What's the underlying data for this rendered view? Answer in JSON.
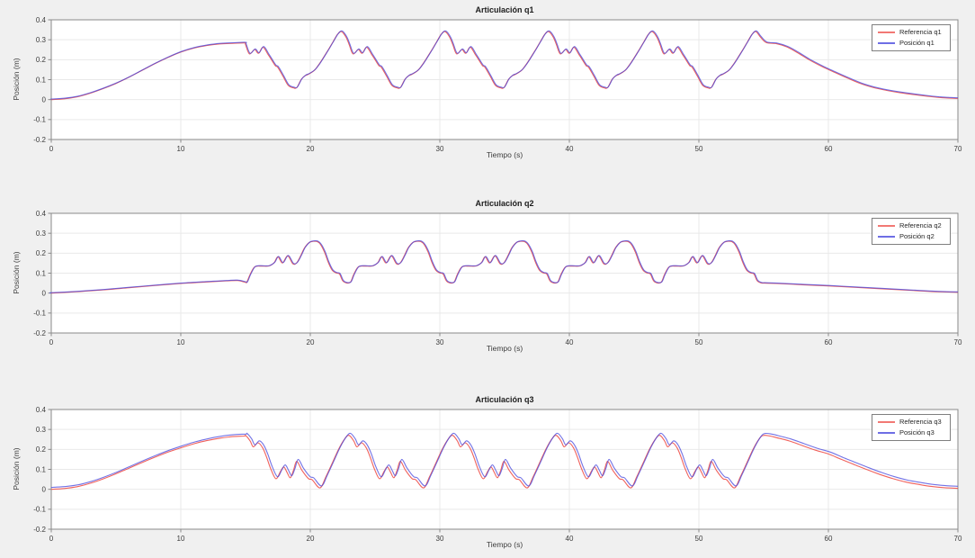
{
  "figure": {
    "background_color": "#f0f0f0",
    "plot_background": "#ffffff",
    "grid_color": "#e9e9e9",
    "axis_color": "#8a8a8a",
    "tick_label_color": "#3c3c3c",
    "title_color": "#1c1c1c",
    "legend_border_color": "#7f7f7f"
  },
  "chart_data": [
    {
      "type": "line",
      "title": "Articulación q1",
      "xlabel": "Tiempo (s)",
      "ylabel": "Posición (m)",
      "xlim": [
        0,
        70
      ],
      "ylim": [
        -0.2,
        0.4
      ],
      "xticks": [
        0,
        10,
        20,
        30,
        40,
        50,
        60,
        70
      ],
      "yticks": [
        -0.2,
        -0.1,
        0,
        0.1,
        0.2,
        0.3,
        0.4
      ],
      "grid": true,
      "legend": {
        "location": "northeast"
      },
      "series": [
        {
          "name": "Referencia q1",
          "color": "#ee4b45",
          "role": "reference",
          "rise": [
            [
              0,
              0
            ],
            [
              1,
              0.004
            ],
            [
              2,
              0.014
            ],
            [
              3,
              0.032
            ],
            [
              4,
              0.055
            ],
            [
              5,
              0.081
            ],
            [
              6,
              0.112
            ],
            [
              7,
              0.146
            ],
            [
              8,
              0.18
            ],
            [
              9,
              0.211
            ],
            [
              10,
              0.238
            ],
            [
              11,
              0.258
            ],
            [
              12,
              0.271
            ],
            [
              13,
              0.279
            ],
            [
              14,
              0.282
            ],
            [
              14.95,
              0.284
            ]
          ],
          "cycle": {
            "period": 8,
            "peaks": [
              14.4,
              22.4,
              30.4,
              38.4,
              46.4,
              54.4
            ],
            "start": 15.0,
            "end": 54.4,
            "keypoints": [
              [
                0,
                0.341
              ],
              [
                0.35,
                0.314
              ],
              [
                0.6,
                0.276
              ],
              [
                0.9,
                0.229
              ],
              [
                1.3,
                0.251
              ],
              [
                1.6,
                0.232
              ],
              [
                1.95,
                0.263
              ],
              [
                2.35,
                0.225
              ],
              [
                2.6,
                0.2
              ],
              [
                2.9,
                0.17
              ],
              [
                3.1,
                0.161
              ],
              [
                3.5,
                0.116
              ],
              [
                3.9,
                0.071
              ],
              [
                4.3,
                0.059
              ],
              [
                4.55,
                0.06
              ],
              [
                4.9,
                0.101
              ],
              [
                5.2,
                0.12
              ],
              [
                5.45,
                0.127
              ],
              [
                5.9,
                0.146
              ],
              [
                6.2,
                0.17
              ],
              [
                6.5,
                0.199
              ],
              [
                7,
                0.251
              ],
              [
                7.35,
                0.289
              ],
              [
                7.7,
                0.327
              ],
              [
                8,
                0.341
              ]
            ]
          },
          "tail": [
            [
              54.75,
              0.314
            ],
            [
              55.2,
              0.286
            ],
            [
              56,
              0.28
            ],
            [
              56.8,
              0.264
            ],
            [
              57.6,
              0.236
            ],
            [
              58.5,
              0.2
            ],
            [
              59.5,
              0.166
            ],
            [
              60.5,
              0.136
            ],
            [
              61.5,
              0.107
            ],
            [
              62.5,
              0.08
            ],
            [
              63.5,
              0.06
            ],
            [
              64.5,
              0.046
            ],
            [
              65.5,
              0.035
            ],
            [
              66.5,
              0.026
            ],
            [
              67.5,
              0.018
            ],
            [
              68.5,
              0.011
            ],
            [
              69.2,
              0.008
            ],
            [
              70,
              0.006
            ]
          ]
        },
        {
          "name": "Posición q1",
          "color": "#4a4ade",
          "role": "measured",
          "derive_from": 0,
          "time_offset": 0.05,
          "value_offset": 0.003
        }
      ]
    },
    {
      "type": "line",
      "title": "Articulación q2",
      "xlabel": "Tiempo (s)",
      "ylabel": "Posición (m)",
      "xlim": [
        0,
        70
      ],
      "ylim": [
        -0.2,
        0.4
      ],
      "xticks": [
        0,
        10,
        20,
        30,
        40,
        50,
        60,
        70
      ],
      "yticks": [
        -0.2,
        -0.1,
        0,
        0.1,
        0.2,
        0.3,
        0.4
      ],
      "grid": true,
      "legend": {
        "location": "northeast"
      },
      "series": [
        {
          "name": "Referencia q2",
          "color": "#ee4b45",
          "role": "reference",
          "rise": [
            [
              0,
              0
            ],
            [
              2,
              0.007
            ],
            [
              4,
              0.016
            ],
            [
              6,
              0.027
            ],
            [
              8,
              0.038
            ],
            [
              10,
              0.048
            ],
            [
              12,
              0.056
            ],
            [
              13.5,
              0.061
            ],
            [
              14.4,
              0.063
            ],
            [
              14.95,
              0.055
            ]
          ],
          "cycle": {
            "period": 8,
            "peaks": [
              12.3,
              20.3,
              28.3,
              36.3,
              44.3,
              52.3
            ],
            "start": 15.0,
            "end": 54.8,
            "keypoints": [
              [
                0,
                0.26
              ],
              [
                0.25,
                0.258
              ],
              [
                0.5,
                0.243
              ],
              [
                0.8,
                0.205
              ],
              [
                1.1,
                0.152
              ],
              [
                1.4,
                0.114
              ],
              [
                1.7,
                0.101
              ],
              [
                1.95,
                0.096
              ],
              [
                2.2,
                0.062
              ],
              [
                2.5,
                0.051
              ],
              [
                2.8,
                0.055
              ],
              [
                3.05,
                0.093
              ],
              [
                3.35,
                0.128
              ],
              [
                3.6,
                0.135
              ],
              [
                4,
                0.135
              ],
              [
                4.5,
                0.136
              ],
              [
                4.9,
                0.152
              ],
              [
                5.2,
                0.182
              ],
              [
                5.55,
                0.151
              ],
              [
                5.95,
                0.187
              ],
              [
                6.35,
                0.147
              ],
              [
                6.65,
                0.152
              ],
              [
                6.95,
                0.186
              ],
              [
                7.25,
                0.226
              ],
              [
                7.6,
                0.253
              ],
              [
                7.85,
                0.259
              ],
              [
                8,
                0.26
              ]
            ]
          },
          "tail": [
            [
              55.05,
              0.05
            ],
            [
              56,
              0.048
            ],
            [
              58,
              0.042
            ],
            [
              60,
              0.036
            ],
            [
              62,
              0.029
            ],
            [
              64,
              0.022
            ],
            [
              66,
              0.015
            ],
            [
              68,
              0.008
            ],
            [
              70,
              0.004
            ]
          ]
        },
        {
          "name": "Posición q2",
          "color": "#4a4ade",
          "role": "measured",
          "derive_from": 0,
          "time_offset": 0.05,
          "value_offset": 0.002
        }
      ]
    },
    {
      "type": "line",
      "title": "Articulación q3",
      "xlabel": "Tiempo (s)",
      "ylabel": "Posición (m)",
      "xlim": [
        0,
        70
      ],
      "ylim": [
        -0.2,
        0.4
      ],
      "xticks": [
        0,
        10,
        20,
        30,
        40,
        50,
        60,
        70
      ],
      "yticks": [
        -0.2,
        -0.1,
        0,
        0.1,
        0.2,
        0.3,
        0.4
      ],
      "grid": true,
      "legend": {
        "location": "northeast"
      },
      "series": [
        {
          "name": "Referencia q3",
          "color": "#ee4b45",
          "role": "reference",
          "rise": [
            [
              0,
              0
            ],
            [
              1,
              0.004
            ],
            [
              2,
              0.013
            ],
            [
              3,
              0.03
            ],
            [
              4,
              0.052
            ],
            [
              5,
              0.078
            ],
            [
              6,
              0.106
            ],
            [
              7,
              0.134
            ],
            [
              8,
              0.161
            ],
            [
              9,
              0.186
            ],
            [
              10,
              0.208
            ],
            [
              11,
              0.228
            ],
            [
              12,
              0.244
            ],
            [
              13,
              0.256
            ],
            [
              14,
              0.264
            ],
            [
              14.9,
              0.267
            ]
          ],
          "cycle": {
            "period": 8,
            "peaks": [
              15,
              23,
              31,
              39,
              47,
              55
            ],
            "start": 14.95,
            "end": 55.0,
            "keypoints": [
              [
                0,
                0.27
              ],
              [
                0.35,
                0.243
              ],
              [
                0.6,
                0.213
              ],
              [
                0.95,
                0.233
              ],
              [
                1.3,
                0.21
              ],
              [
                1.6,
                0.166
              ],
              [
                1.95,
                0.102
              ],
              [
                2.35,
                0.053
              ],
              [
                2.7,
                0.09
              ],
              [
                2.95,
                0.112
              ],
              [
                3.2,
                0.085
              ],
              [
                3.45,
                0.058
              ],
              [
                3.7,
                0.095
              ],
              [
                3.95,
                0.14
              ],
              [
                4.35,
                0.096
              ],
              [
                4.85,
                0.054
              ],
              [
                5.15,
                0.047
              ],
              [
                5.75,
                0.007
              ],
              [
                6.2,
                0.062
              ],
              [
                6.7,
                0.132
              ],
              [
                7.2,
                0.203
              ],
              [
                7.7,
                0.257
              ],
              [
                8,
                0.27
              ]
            ]
          },
          "tail": [
            [
              55.5,
              0.267
            ],
            [
              56,
              0.259
            ],
            [
              57,
              0.242
            ],
            [
              58,
              0.219
            ],
            [
              59,
              0.196
            ],
            [
              60,
              0.177
            ],
            [
              61,
              0.15
            ],
            [
              62,
              0.124
            ],
            [
              63,
              0.098
            ],
            [
              64,
              0.074
            ],
            [
              65,
              0.053
            ],
            [
              66,
              0.036
            ],
            [
              67,
              0.024
            ],
            [
              68,
              0.014
            ],
            [
              69,
              0.008
            ],
            [
              70,
              0.005
            ]
          ]
        },
        {
          "name": "Posición q3",
          "color": "#4a4ade",
          "role": "measured",
          "derive_from": 0,
          "time_offset": 0.12,
          "value_offset": 0.01
        }
      ]
    }
  ]
}
